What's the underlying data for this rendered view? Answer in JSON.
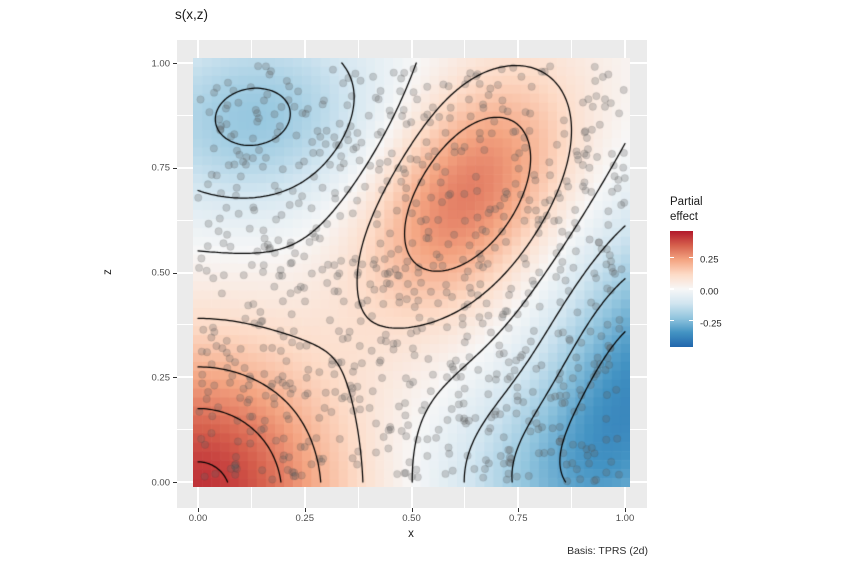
{
  "chart_data": {
    "type": "heatmap_contour_scatter",
    "title": "s(x,z)",
    "xlabel": "x",
    "ylabel": "z",
    "caption": "Basis: TPRS (2d)",
    "x_ticks": {
      "values": [
        0,
        0.25,
        0.5,
        0.75,
        1.0
      ],
      "labels": [
        "0.00",
        "0.25",
        "0.50",
        "0.75",
        "1.00"
      ]
    },
    "z_ticks": {
      "values": [
        0,
        0.25,
        0.5,
        0.75,
        1.0
      ],
      "labels": [
        "0.00",
        "0.25",
        "0.50",
        "0.75",
        "1.00"
      ]
    },
    "minor_ticks": [
      0.125,
      0.375,
      0.625,
      0.875
    ],
    "x_range": [
      0,
      1
    ],
    "z_range": [
      0,
      1
    ],
    "legend": {
      "title": "Partial effect",
      "tick_values": [
        0.25,
        0.0,
        -0.25
      ],
      "tick_labels": [
        "0.25",
        "0.00",
        "-0.25"
      ]
    },
    "fill_limits": [
      -0.46,
      0.46
    ],
    "palette_rdbu_blue_to_red": [
      "#2166AC",
      "#4393C3",
      "#92C5DE",
      "#D1E5F0",
      "#F7F7F7",
      "#FDDBC7",
      "#F4A582",
      "#D6604D",
      "#B2182B"
    ],
    "contour_levels": [
      -0.3,
      -0.2,
      -0.1,
      0,
      0.1,
      0.2,
      0.3,
      0.4
    ],
    "surface_gaussians": [
      {
        "amp": 0.42,
        "cx": 0.0,
        "cz": -0.03,
        "sx": 0.24,
        "sz": 0.25,
        "rot": 0
      },
      {
        "amp": 0.3,
        "cx": 0.63,
        "cz": 0.69,
        "sx": 0.23,
        "sz": 0.14,
        "rot": 1.0
      },
      {
        "amp": -0.22,
        "cx": 0.13,
        "cz": 0.87,
        "sx": 0.21,
        "sz": 0.16,
        "rot": 0.15
      },
      {
        "amp": -0.35,
        "cx": 1.04,
        "cz": 0.24,
        "sx": 0.29,
        "sz": 0.16,
        "rot": 1.25
      },
      {
        "amp": -0.13,
        "cx": 0.78,
        "cz": 0.0,
        "sx": 0.19,
        "sz": 0.16,
        "rot": 0
      }
    ],
    "raster_grid": 48,
    "scatter": {
      "n": 860,
      "seed": 20240917,
      "alpha": 0.27
    },
    "styles": {
      "panel_bg": "#EBEBEB",
      "grid_color": "#FFFFFF",
      "contour_color": "#000000",
      "point_color": "#5F5F5F",
      "tick_text": "#4D4D4D",
      "dark_text": "#1A1A1A"
    }
  }
}
